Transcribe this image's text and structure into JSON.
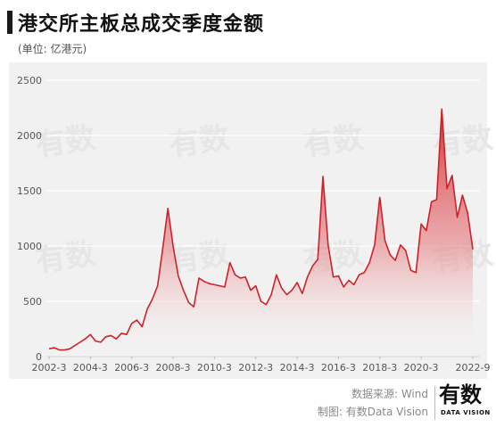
{
  "header": {
    "title": "港交所主板总成交季度金额",
    "unit": "(单位: 亿港元)"
  },
  "footer": {
    "source": "数据来源: Wind",
    "credit": "制图: 有数Data Vision"
  },
  "logo": {
    "main": "有数",
    "sub": "DATA VISION"
  },
  "watermark": {
    "text": "有数"
  },
  "colors": {
    "line": "#cc2229",
    "fill_top": "#d52a30",
    "fill_bottom": "#ffffff",
    "plot_bg": "#f1f1f1",
    "grid": "#ffffff"
  },
  "chart_data": {
    "type": "area",
    "title": "港交所主板总成交季度金额",
    "ylabel": "(单位: 亿港元)",
    "ylim": [
      0,
      2500
    ],
    "yticks": [
      0,
      500,
      1000,
      1500,
      2000,
      2500
    ],
    "xticks": [
      "2002-3",
      "2004-3",
      "2006-3",
      "2008-3",
      "2010-3",
      "2012-3",
      "2014-3",
      "2016-3",
      "2018-3",
      "2020-3",
      "2022-9"
    ],
    "grid": true,
    "legend": "none",
    "series": [
      {
        "x": [
          "2002-3",
          "2002-6",
          "2002-9",
          "2002-12",
          "2003-3",
          "2003-6",
          "2003-9",
          "2003-12",
          "2004-3",
          "2004-6",
          "2004-9",
          "2004-12",
          "2005-3",
          "2005-6",
          "2005-9",
          "2005-12",
          "2006-3",
          "2006-6",
          "2006-9",
          "2006-12",
          "2007-3",
          "2007-6",
          "2007-9",
          "2007-12",
          "2008-3",
          "2008-6",
          "2008-9",
          "2008-12",
          "2009-3",
          "2009-6",
          "2009-9",
          "2009-12",
          "2010-3",
          "2010-6",
          "2010-9",
          "2010-12",
          "2011-3",
          "2011-6",
          "2011-9",
          "2011-12",
          "2012-3",
          "2012-6",
          "2012-9",
          "2012-12",
          "2013-3",
          "2013-6",
          "2013-9",
          "2013-12",
          "2014-3",
          "2014-6",
          "2014-9",
          "2014-12",
          "2015-3",
          "2015-6",
          "2015-9",
          "2015-12",
          "2016-3",
          "2016-6",
          "2016-9",
          "2016-12",
          "2017-3",
          "2017-6",
          "2017-9",
          "2017-12",
          "2018-3",
          "2018-6",
          "2018-9",
          "2018-12",
          "2019-3",
          "2019-6",
          "2019-9",
          "2019-12",
          "2020-3",
          "2020-6",
          "2020-9",
          "2020-12",
          "2021-3",
          "2021-6",
          "2021-9",
          "2021-12",
          "2022-3",
          "2022-6",
          "2022-9"
        ],
        "values": [
          70,
          80,
          60,
          60,
          70,
          100,
          130,
          160,
          200,
          140,
          130,
          180,
          190,
          160,
          210,
          200,
          300,
          330,
          270,
          430,
          520,
          640,
          980,
          1340,
          1000,
          730,
          600,
          490,
          450,
          710,
          680,
          660,
          650,
          640,
          630,
          850,
          740,
          710,
          720,
          600,
          640,
          500,
          470,
          560,
          740,
          620,
          560,
          600,
          670,
          570,
          720,
          820,
          880,
          1630,
          1010,
          720,
          730,
          630,
          690,
          650,
          740,
          760,
          850,
          1010,
          1440,
          1050,
          920,
          870,
          1010,
          960,
          780,
          760,
          1200,
          1140,
          1400,
          1420,
          2240,
          1520,
          1640,
          1260,
          1460,
          1300,
          970
        ]
      }
    ]
  }
}
